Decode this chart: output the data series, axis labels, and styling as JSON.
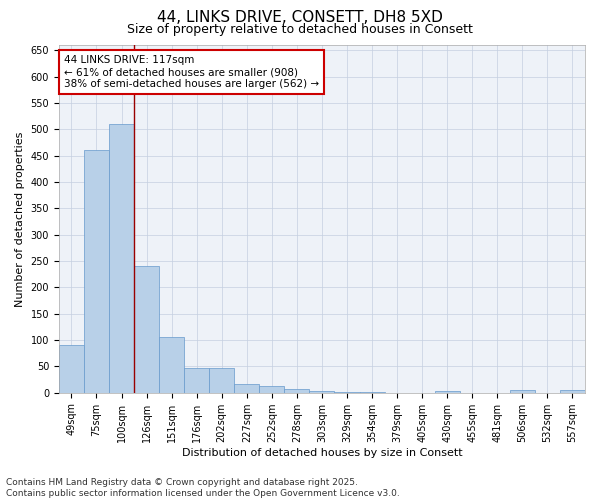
{
  "title": "44, LINKS DRIVE, CONSETT, DH8 5XD",
  "subtitle": "Size of property relative to detached houses in Consett",
  "xlabel": "Distribution of detached houses by size in Consett",
  "ylabel": "Number of detached properties",
  "categories": [
    "49sqm",
    "75sqm",
    "100sqm",
    "126sqm",
    "151sqm",
    "176sqm",
    "202sqm",
    "227sqm",
    "252sqm",
    "278sqm",
    "303sqm",
    "329sqm",
    "354sqm",
    "379sqm",
    "405sqm",
    "430sqm",
    "455sqm",
    "481sqm",
    "506sqm",
    "532sqm",
    "557sqm"
  ],
  "values": [
    90,
    460,
    510,
    240,
    105,
    47,
    47,
    17,
    12,
    7,
    3,
    1,
    1,
    0,
    0,
    3,
    0,
    0,
    5,
    0,
    5
  ],
  "bar_color": "#b8d0e8",
  "bar_edge_color": "#6699cc",
  "bar_width": 1.0,
  "vline_x": 2.5,
  "vline_color": "#990000",
  "annotation_text": "44 LINKS DRIVE: 117sqm\n← 61% of detached houses are smaller (908)\n38% of semi-detached houses are larger (562) →",
  "annotation_box_color": "#ffffff",
  "annotation_box_edge": "#cc0000",
  "ylim": [
    0,
    660
  ],
  "yticks": [
    0,
    50,
    100,
    150,
    200,
    250,
    300,
    350,
    400,
    450,
    500,
    550,
    600,
    650
  ],
  "bg_color": "#eef2f8",
  "footer_line1": "Contains HM Land Registry data © Crown copyright and database right 2025.",
  "footer_line2": "Contains public sector information licensed under the Open Government Licence v3.0.",
  "title_fontsize": 11,
  "subtitle_fontsize": 9,
  "label_fontsize": 8,
  "tick_fontsize": 7,
  "annotation_fontsize": 7.5,
  "footer_fontsize": 6.5
}
